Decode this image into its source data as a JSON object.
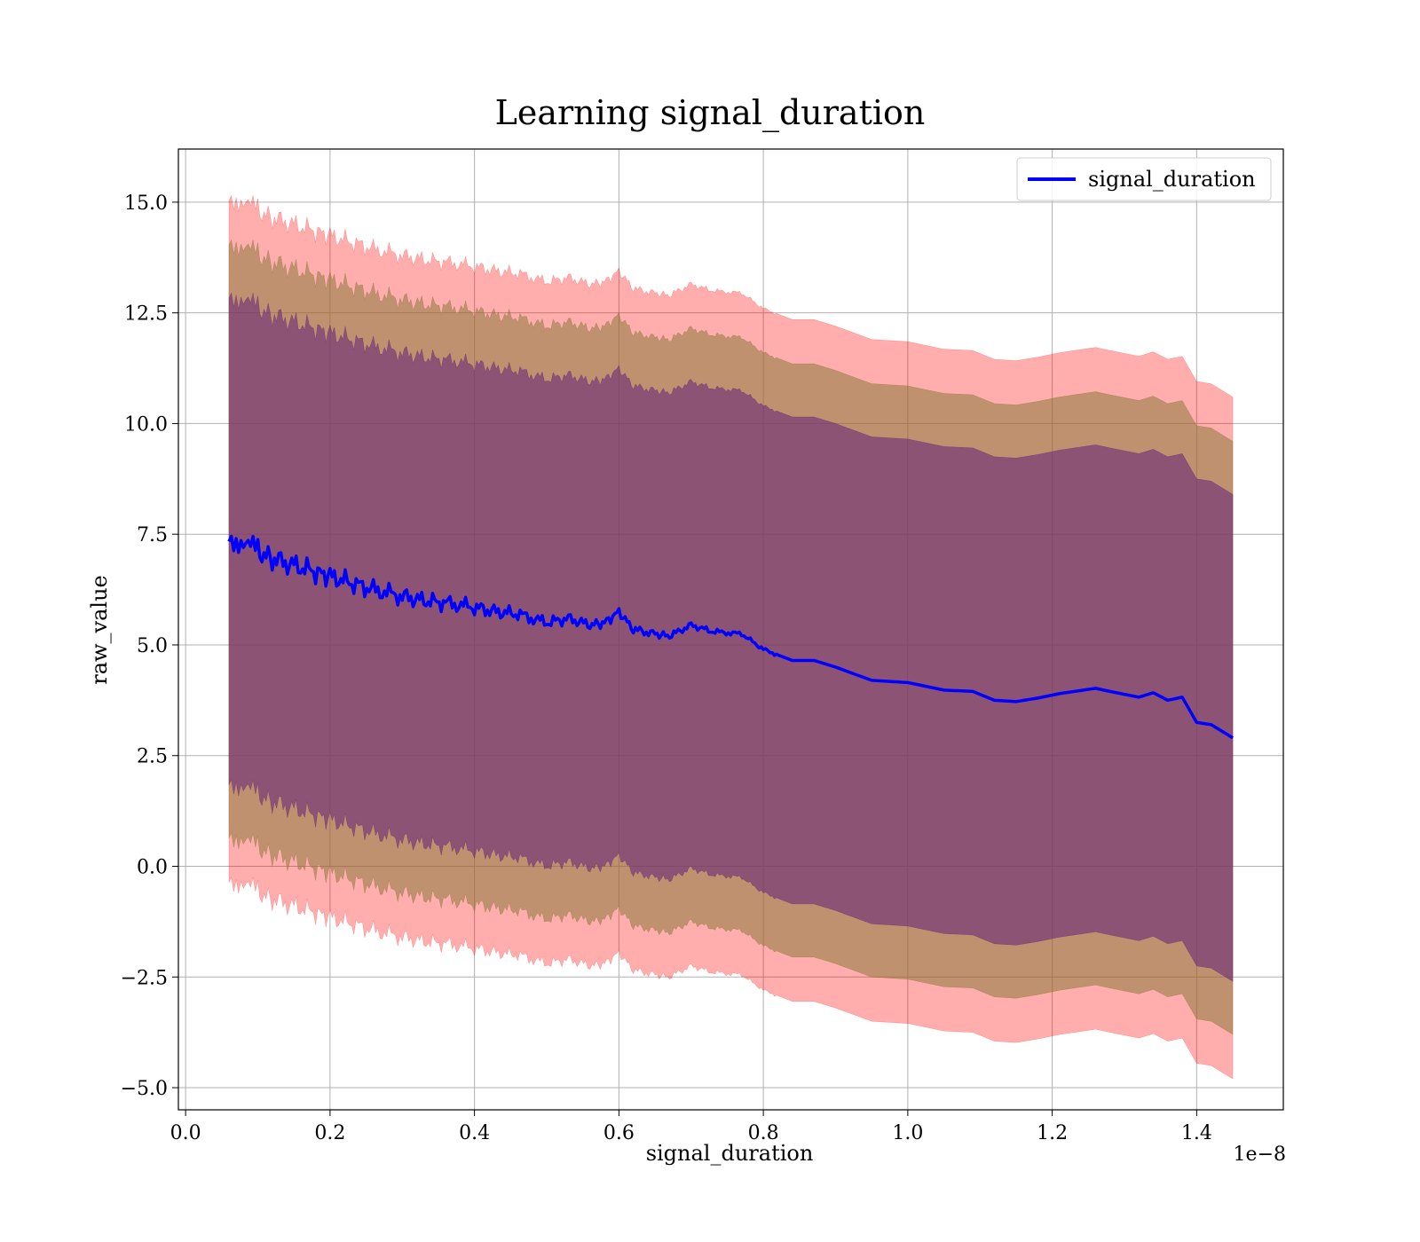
{
  "chart_data": {
    "type": "line",
    "title": "Learning signal_duration",
    "xlabel": "signal_duration",
    "ylabel": "raw_value",
    "x_offset_label": "1e−8",
    "xlim": [
      -0.01,
      1.52
    ],
    "ylim": [
      -5.5,
      16.2
    ],
    "grid": true,
    "x_ticks": [
      0.0,
      0.2,
      0.4,
      0.6,
      0.8,
      1.0,
      1.2,
      1.4
    ],
    "x_tick_labels": [
      "0.0",
      "0.2",
      "0.4",
      "0.6",
      "0.8",
      "1.0",
      "1.2",
      "1.4"
    ],
    "y_ticks": [
      -5.0,
      -2.5,
      0.0,
      2.5,
      5.0,
      7.5,
      10.0,
      12.5,
      15.0
    ],
    "y_tick_labels": [
      "−5.0",
      "−2.5",
      "0.0",
      "2.5",
      "5.0",
      "7.5",
      "10.0",
      "12.5",
      "15.0"
    ],
    "legend": {
      "placement": "top-right",
      "entries": [
        "signal_duration"
      ]
    },
    "colors": {
      "line": "#0000ff",
      "band_outer": "#ff0000",
      "band_middle": "#8a7a3a",
      "band_inner": "#6a2a7a",
      "axes": "#000000",
      "grid": "#b0b0b0"
    },
    "band_widths": {
      "inner": 5.5,
      "middle": 6.7,
      "outer": 7.7
    },
    "series": [
      {
        "name": "signal_duration",
        "x": [
          0.06,
          0.07,
          0.08,
          0.09,
          0.1,
          0.12,
          0.15,
          0.18,
          0.2,
          0.23,
          0.26,
          0.3,
          0.33,
          0.36,
          0.4,
          0.43,
          0.46,
          0.5,
          0.53,
          0.56,
          0.58,
          0.6,
          0.62,
          0.65,
          0.67,
          0.7,
          0.73,
          0.77,
          0.8,
          0.84,
          0.87,
          0.9,
          0.95,
          1.0,
          1.05,
          1.09,
          1.12,
          1.15,
          1.18,
          1.21,
          1.26,
          1.28,
          1.32,
          1.34,
          1.36,
          1.38,
          1.4,
          1.42,
          1.45
        ],
        "y": [
          7.5,
          7.4,
          7.3,
          7.2,
          7.1,
          6.95,
          6.8,
          6.65,
          6.55,
          6.4,
          6.25,
          6.1,
          6.0,
          5.95,
          5.85,
          5.75,
          5.7,
          5.5,
          5.6,
          5.45,
          5.5,
          5.75,
          5.35,
          5.25,
          5.2,
          5.45,
          5.3,
          5.25,
          4.9,
          4.65,
          4.65,
          4.5,
          4.2,
          4.15,
          3.98,
          3.95,
          3.75,
          3.72,
          3.8,
          3.9,
          4.02,
          3.95,
          3.82,
          3.92,
          3.75,
          3.82,
          3.25,
          3.2,
          2.9
        ]
      }
    ]
  }
}
